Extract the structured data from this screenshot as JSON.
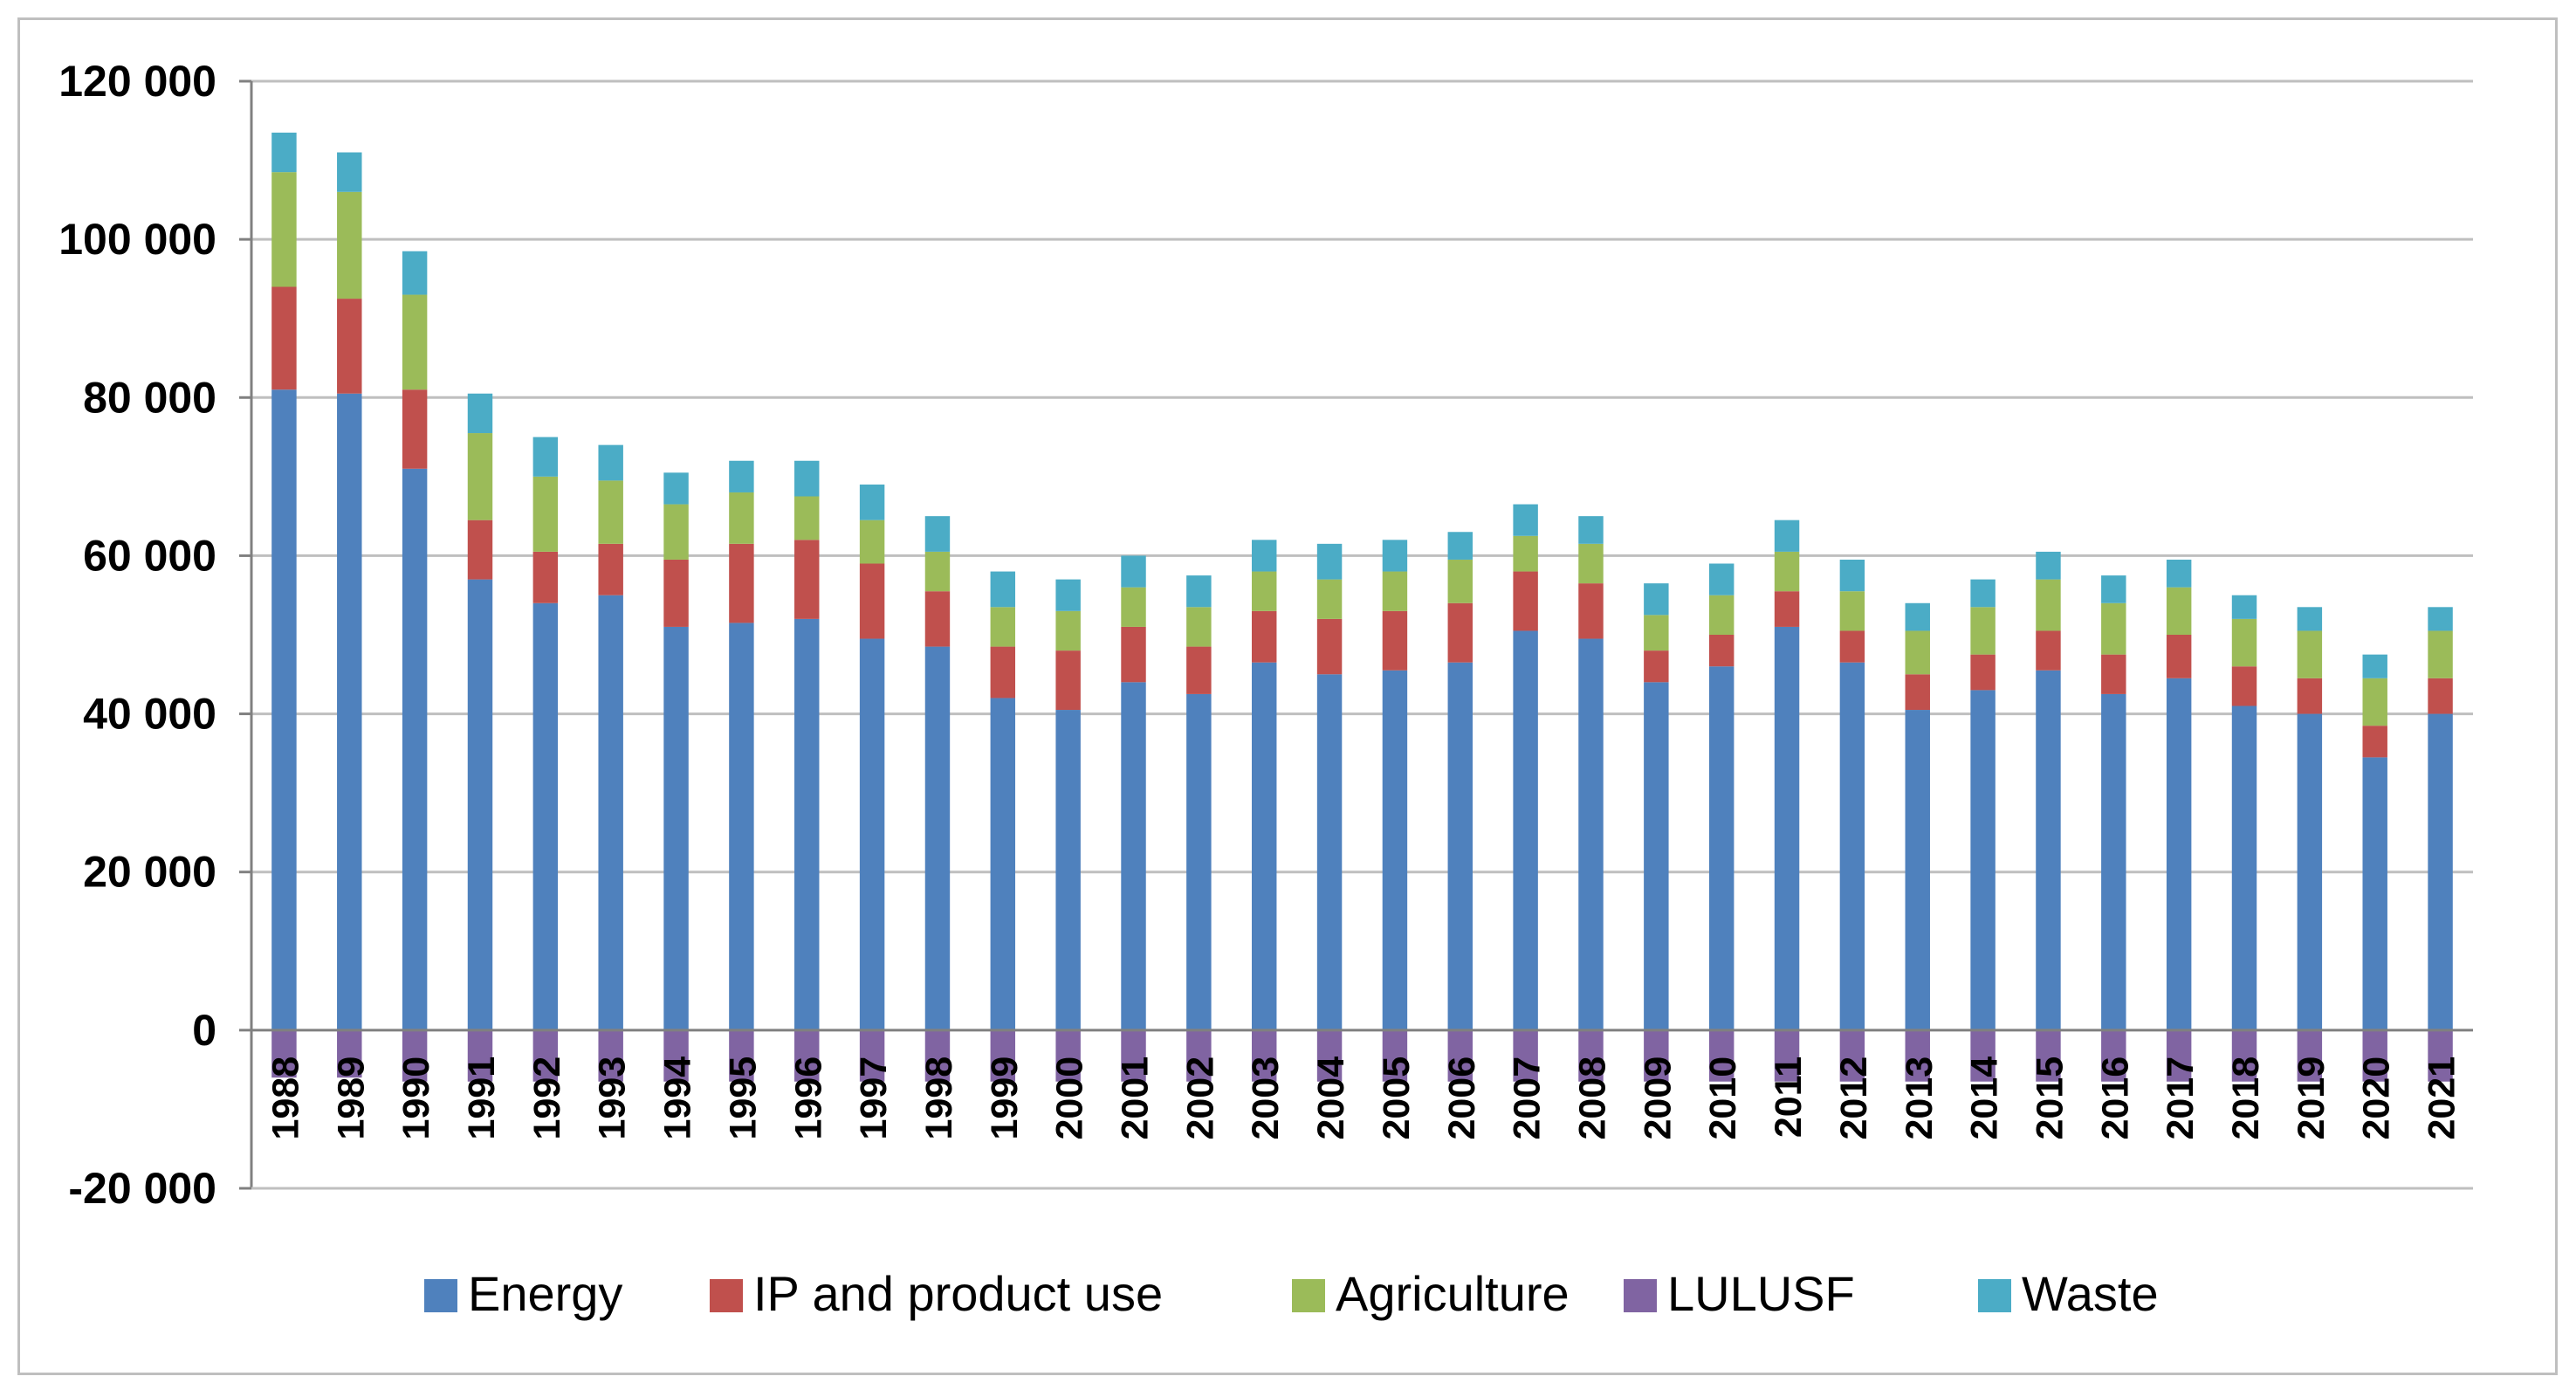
{
  "chart_data": {
    "type": "bar",
    "stacked": true,
    "title": "",
    "xlabel": "",
    "ylabel": "",
    "ylim": [
      -20000,
      120000
    ],
    "ytick_values": [
      -20000,
      0,
      20000,
      40000,
      60000,
      80000,
      100000,
      120000
    ],
    "ytick_labels": [
      "-20 000",
      "0",
      "20 000",
      "40 000",
      "60 000",
      "80 000",
      "100 000",
      "120 000"
    ],
    "grid": true,
    "legend_position": "bottom",
    "categories": [
      "1988",
      "1989",
      "1990",
      "1991",
      "1992",
      "1993",
      "1994",
      "1995",
      "1996",
      "1997",
      "1998",
      "1999",
      "2000",
      "2001",
      "2002",
      "2003",
      "2004",
      "2005",
      "2006",
      "2007",
      "2008",
      "2009",
      "2010",
      "2011",
      "2012",
      "2013",
      "2014",
      "2015",
      "2016",
      "2017",
      "2018",
      "2019",
      "2020",
      "2021"
    ],
    "series": [
      {
        "name": "Energy",
        "color": "#4f81bd",
        "values": [
          81000,
          80500,
          71000,
          57000,
          54000,
          55000,
          51000,
          51500,
          52000,
          49500,
          48500,
          42000,
          40500,
          44000,
          42500,
          46500,
          45000,
          45500,
          46500,
          50500,
          49500,
          44000,
          46000,
          51000,
          46500,
          40500,
          43000,
          45500,
          42500,
          44500,
          41000,
          40000,
          34500,
          40000
        ]
      },
      {
        "name": "IP and product use",
        "color": "#c0504d",
        "values": [
          13000,
          12000,
          10000,
          7500,
          6500,
          6500,
          8500,
          10000,
          10000,
          9500,
          7000,
          6500,
          7500,
          7000,
          6000,
          6500,
          7000,
          7500,
          7500,
          7500,
          7000,
          4000,
          4000,
          4500,
          4000,
          4500,
          4500,
          5000,
          5000,
          5500,
          5000,
          4500,
          4000,
          4500
        ]
      },
      {
        "name": "Agriculture",
        "color": "#9bbb59",
        "values": [
          14500,
          13500,
          12000,
          11000,
          9500,
          8000,
          7000,
          6500,
          5500,
          5500,
          5000,
          5000,
          5000,
          5000,
          5000,
          5000,
          5000,
          5000,
          5500,
          4500,
          5000,
          4500,
          5000,
          5000,
          5000,
          5500,
          6000,
          6500,
          6500,
          6000,
          6000,
          6000,
          6000,
          6000
        ]
      },
      {
        "name": "LULUSF",
        "color": "#8064a2",
        "values": [
          -6000,
          -6000,
          -6500,
          -6500,
          -6500,
          -6500,
          -6500,
          -6500,
          -6500,
          -6500,
          -6500,
          -6500,
          -6500,
          -6500,
          -6500,
          -6500,
          -6500,
          -6500,
          -6500,
          -6500,
          -6500,
          -6500,
          -6500,
          -6500,
          -6500,
          -6500,
          -6500,
          -6500,
          -6500,
          -6500,
          -6500,
          -6500,
          -6500,
          -6500
        ]
      },
      {
        "name": "Waste",
        "color": "#4bacc6",
        "values": [
          5000,
          5000,
          5500,
          5000,
          5000,
          4500,
          4000,
          4000,
          4500,
          4500,
          4500,
          4500,
          4000,
          4000,
          4000,
          4000,
          4500,
          4000,
          3500,
          4000,
          3500,
          4000,
          4000,
          4000,
          4000,
          3500,
          3500,
          3500,
          3500,
          3500,
          3000,
          3000,
          3000,
          3000
        ]
      }
    ]
  }
}
